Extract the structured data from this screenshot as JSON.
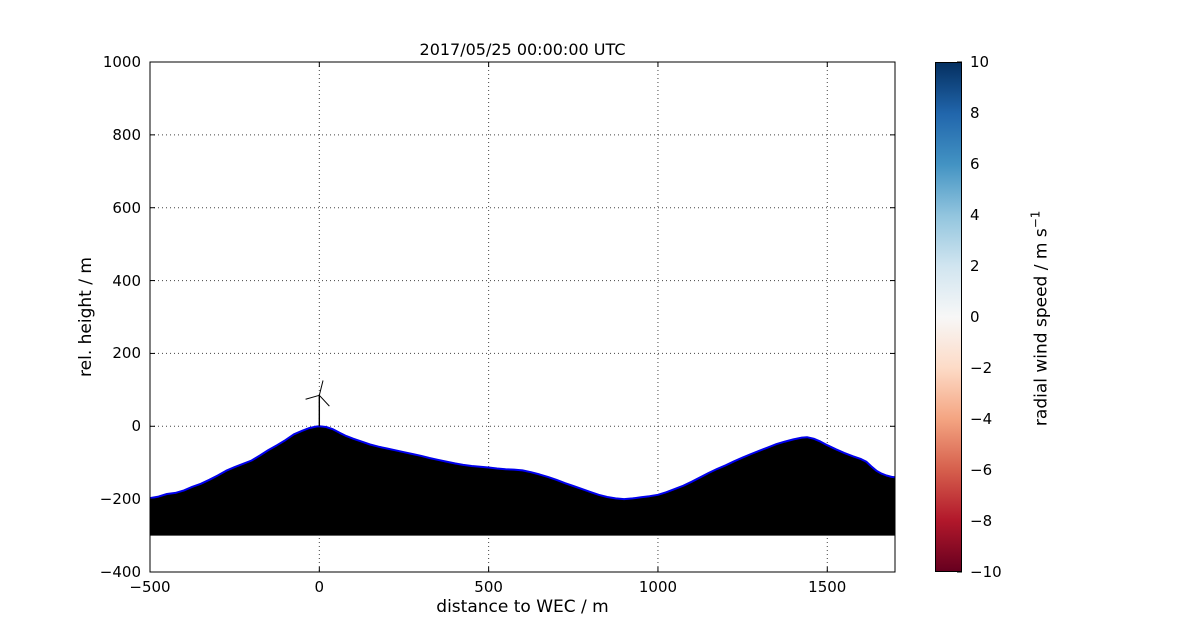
{
  "chart_data": {
    "type": "area",
    "title": "2017/05/25 00:00:00 UTC",
    "xlabel": "distance to WEC / m",
    "ylabel": "rel. height / m",
    "xlim": [
      -500,
      1700
    ],
    "ylim": [
      -400,
      1000
    ],
    "grid": "dotted",
    "background": "#ffffff",
    "xticks": [
      {
        "v": -500,
        "label": "−500"
      },
      {
        "v": 0,
        "label": "0"
      },
      {
        "v": 500,
        "label": "500"
      },
      {
        "v": 1000,
        "label": "1000"
      },
      {
        "v": 1500,
        "label": "1500"
      }
    ],
    "yticks": [
      {
        "v": -400,
        "label": "−400"
      },
      {
        "v": -200,
        "label": "−200"
      },
      {
        "v": 0,
        "label": "0"
      },
      {
        "v": 200,
        "label": "200"
      },
      {
        "v": 400,
        "label": "400"
      },
      {
        "v": 600,
        "label": "600"
      },
      {
        "v": 800,
        "label": "800"
      },
      {
        "v": 1000,
        "label": "1000"
      }
    ],
    "terrain": {
      "fill_color": "#000000",
      "line_color": "#0000ee",
      "base": -300,
      "profile": [
        [
          -500,
          -197
        ],
        [
          -475,
          -193
        ],
        [
          -450,
          -186
        ],
        [
          -425,
          -183
        ],
        [
          -400,
          -176
        ],
        [
          -375,
          -166
        ],
        [
          -350,
          -158
        ],
        [
          -325,
          -147
        ],
        [
          -300,
          -135
        ],
        [
          -275,
          -122
        ],
        [
          -250,
          -112
        ],
        [
          -225,
          -103
        ],
        [
          -200,
          -94
        ],
        [
          -175,
          -80
        ],
        [
          -150,
          -65
        ],
        [
          -125,
          -52
        ],
        [
          -100,
          -38
        ],
        [
          -75,
          -22
        ],
        [
          -50,
          -12
        ],
        [
          -30,
          -5
        ],
        [
          -10,
          -1
        ],
        [
          0,
          0
        ],
        [
          20,
          -2
        ],
        [
          40,
          -8
        ],
        [
          60,
          -18
        ],
        [
          80,
          -27
        ],
        [
          100,
          -34
        ],
        [
          125,
          -42
        ],
        [
          150,
          -50
        ],
        [
          175,
          -56
        ],
        [
          200,
          -61
        ],
        [
          225,
          -66
        ],
        [
          250,
          -71
        ],
        [
          275,
          -76
        ],
        [
          300,
          -81
        ],
        [
          325,
          -87
        ],
        [
          350,
          -92
        ],
        [
          375,
          -97
        ],
        [
          400,
          -102
        ],
        [
          425,
          -106
        ],
        [
          450,
          -109
        ],
        [
          475,
          -111
        ],
        [
          500,
          -113
        ],
        [
          525,
          -116
        ],
        [
          550,
          -118
        ],
        [
          575,
          -119
        ],
        [
          600,
          -121
        ],
        [
          625,
          -126
        ],
        [
          650,
          -132
        ],
        [
          675,
          -139
        ],
        [
          700,
          -147
        ],
        [
          725,
          -156
        ],
        [
          750,
          -164
        ],
        [
          775,
          -172
        ],
        [
          800,
          -180
        ],
        [
          825,
          -188
        ],
        [
          850,
          -194
        ],
        [
          875,
          -198
        ],
        [
          900,
          -200
        ],
        [
          925,
          -198
        ],
        [
          950,
          -195
        ],
        [
          975,
          -192
        ],
        [
          1000,
          -188
        ],
        [
          1025,
          -181
        ],
        [
          1050,
          -172
        ],
        [
          1075,
          -163
        ],
        [
          1100,
          -152
        ],
        [
          1125,
          -140
        ],
        [
          1150,
          -128
        ],
        [
          1175,
          -117
        ],
        [
          1200,
          -107
        ],
        [
          1225,
          -96
        ],
        [
          1250,
          -86
        ],
        [
          1275,
          -76
        ],
        [
          1300,
          -67
        ],
        [
          1325,
          -58
        ],
        [
          1350,
          -49
        ],
        [
          1375,
          -42
        ],
        [
          1400,
          -36
        ],
        [
          1425,
          -31
        ],
        [
          1440,
          -30
        ],
        [
          1460,
          -34
        ],
        [
          1480,
          -42
        ],
        [
          1500,
          -52
        ],
        [
          1525,
          -63
        ],
        [
          1550,
          -73
        ],
        [
          1575,
          -82
        ],
        [
          1600,
          -90
        ],
        [
          1615,
          -97
        ],
        [
          1630,
          -110
        ],
        [
          1645,
          -122
        ],
        [
          1660,
          -130
        ],
        [
          1675,
          -135
        ],
        [
          1690,
          -139
        ],
        [
          1700,
          -140
        ]
      ]
    },
    "turbine": {
      "x": 0,
      "base": 0,
      "hub_height": 85,
      "blade_length": 42,
      "blade_angles_deg": [
        75,
        195,
        315
      ]
    },
    "colorbar": {
      "label_main": "radial wind speed / m s",
      "label_sup": "−1",
      "min": -10,
      "max": 10,
      "ticks": [
        {
          "v": 10,
          "label": "10"
        },
        {
          "v": 8,
          "label": "8"
        },
        {
          "v": 6,
          "label": "6"
        },
        {
          "v": 4,
          "label": "4"
        },
        {
          "v": 2,
          "label": "2"
        },
        {
          "v": 0,
          "label": "0"
        },
        {
          "v": -2,
          "label": "−2"
        },
        {
          "v": -4,
          "label": "−4"
        },
        {
          "v": -6,
          "label": "−6"
        },
        {
          "v": -8,
          "label": "−8"
        },
        {
          "v": -10,
          "label": "−10"
        }
      ],
      "stops": [
        {
          "pos": 0,
          "color": "#053061"
        },
        {
          "pos": 10,
          "color": "#2166ac"
        },
        {
          "pos": 20,
          "color": "#4393c3"
        },
        {
          "pos": 30,
          "color": "#92c5de"
        },
        {
          "pos": 40,
          "color": "#d1e5f0"
        },
        {
          "pos": 50,
          "color": "#f7f7f7"
        },
        {
          "pos": 60,
          "color": "#fddbc7"
        },
        {
          "pos": 70,
          "color": "#f4a582"
        },
        {
          "pos": 80,
          "color": "#d6604d"
        },
        {
          "pos": 90,
          "color": "#b2182b"
        },
        {
          "pos": 100,
          "color": "#67001f"
        }
      ]
    }
  }
}
